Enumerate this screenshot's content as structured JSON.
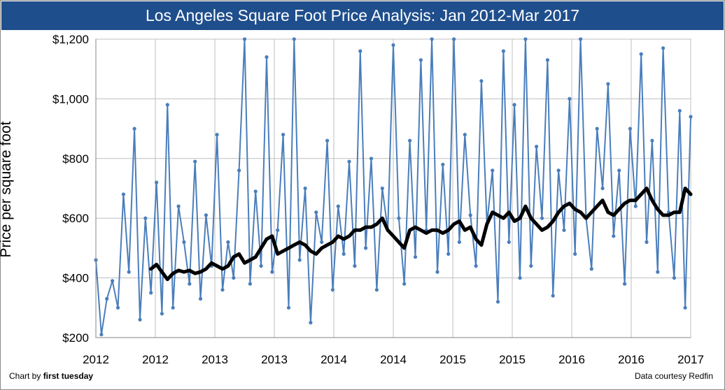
{
  "chart_data": {
    "type": "line",
    "title": "Los Angeles Square Foot Price Analysis: Jan 2012-Mar 2017",
    "ylabel": "Price per square foot",
    "ylim": [
      200,
      1200
    ],
    "yticks": [
      200,
      400,
      600,
      800,
      1000,
      1200
    ],
    "ytick_labels": [
      "$200",
      "$400",
      "$600",
      "$800",
      "$1,000",
      "$1,200"
    ],
    "xlim": [
      2012.0,
      2017.4
    ],
    "xtick_labels": [
      "2012",
      "2012",
      "2013",
      "2013",
      "2014",
      "2014",
      "2015",
      "2015",
      "2016",
      "2016",
      "2017"
    ],
    "grid": true,
    "series": [
      {
        "color": "#4a7ebb",
        "style": "line-with-markers",
        "x": [
          2012.0,
          2012.05,
          2012.1,
          2012.15,
          2012.2,
          2012.25,
          2012.3,
          2012.35,
          2012.4,
          2012.45,
          2012.5,
          2012.55,
          2012.6,
          2012.65,
          2012.7,
          2012.75,
          2012.8,
          2012.85,
          2012.9,
          2012.95,
          2013.0,
          2013.05,
          2013.1,
          2013.15,
          2013.2,
          2013.25,
          2013.3,
          2013.35,
          2013.4,
          2013.45,
          2013.5,
          2013.55,
          2013.6,
          2013.65,
          2013.7,
          2013.75,
          2013.8,
          2013.85,
          2013.9,
          2013.95,
          2014.0,
          2014.05,
          2014.1,
          2014.15,
          2014.2,
          2014.25,
          2014.3,
          2014.35,
          2014.4,
          2014.45,
          2014.5,
          2014.55,
          2014.6,
          2014.65,
          2014.7,
          2014.75,
          2014.8,
          2014.85,
          2014.9,
          2014.95,
          2015.0,
          2015.05,
          2015.1,
          2015.15,
          2015.2,
          2015.25,
          2015.3,
          2015.35,
          2015.4,
          2015.45,
          2015.5,
          2015.55,
          2015.6,
          2015.65,
          2015.7,
          2015.75,
          2015.8,
          2015.85,
          2015.9,
          2015.95,
          2016.0,
          2016.05,
          2016.1,
          2016.15,
          2016.2,
          2016.25,
          2016.3,
          2016.35,
          2016.4,
          2016.45,
          2016.5,
          2016.55,
          2016.6,
          2016.65,
          2016.7,
          2016.75,
          2016.8,
          2016.85,
          2016.9,
          2016.95,
          2017.0,
          2017.05,
          2017.1,
          2017.15,
          2017.2,
          2017.25,
          2017.3,
          2017.35,
          2017.4
        ],
        "values": [
          460,
          210,
          330,
          390,
          300,
          680,
          420,
          900,
          260,
          600,
          350,
          720,
          280,
          980,
          300,
          640,
          520,
          380,
          790,
          330,
          610,
          440,
          880,
          360,
          520,
          400,
          760,
          1200,
          380,
          690,
          440,
          1140,
          420,
          560,
          880,
          300,
          1200,
          460,
          700,
          250,
          620,
          520,
          860,
          360,
          640,
          480,
          790,
          440,
          1160,
          500,
          800,
          360,
          700,
          560,
          1180,
          600,
          380,
          860,
          470,
          1130,
          560,
          1200,
          420,
          780,
          480,
          1200,
          520,
          880,
          610,
          440,
          1060,
          580,
          760,
          320,
          1160,
          520,
          980,
          400,
          1200,
          440,
          840,
          600,
          1130,
          340,
          760,
          560,
          1000,
          480,
          1200,
          600,
          430,
          900,
          700,
          1050,
          540,
          760,
          380,
          900,
          640,
          1150,
          520,
          860,
          420,
          1170,
          620,
          400,
          960,
          300,
          940
        ]
      },
      {
        "color": "#000000",
        "style": "thick-line",
        "x": [
          2012.5,
          2012.55,
          2012.6,
          2012.65,
          2012.7,
          2012.75,
          2012.8,
          2012.85,
          2012.9,
          2012.95,
          2013.0,
          2013.05,
          2013.1,
          2013.15,
          2013.2,
          2013.25,
          2013.3,
          2013.35,
          2013.4,
          2013.45,
          2013.5,
          2013.55,
          2013.6,
          2013.65,
          2013.7,
          2013.75,
          2013.8,
          2013.85,
          2013.9,
          2013.95,
          2014.0,
          2014.05,
          2014.1,
          2014.15,
          2014.2,
          2014.25,
          2014.3,
          2014.35,
          2014.4,
          2014.45,
          2014.5,
          2014.55,
          2014.6,
          2014.65,
          2014.7,
          2014.75,
          2014.8,
          2014.85,
          2014.9,
          2014.95,
          2015.0,
          2015.05,
          2015.1,
          2015.15,
          2015.2,
          2015.25,
          2015.3,
          2015.35,
          2015.4,
          2015.45,
          2015.5,
          2015.55,
          2015.6,
          2015.65,
          2015.7,
          2015.75,
          2015.8,
          2015.85,
          2015.9,
          2015.95,
          2016.0,
          2016.05,
          2016.1,
          2016.15,
          2016.2,
          2016.25,
          2016.3,
          2016.35,
          2016.4,
          2016.45,
          2016.5,
          2016.55,
          2016.6,
          2016.65,
          2016.7,
          2016.75,
          2016.8,
          2016.85,
          2016.9,
          2016.95,
          2017.0,
          2017.05,
          2017.1,
          2017.15,
          2017.2,
          2017.25,
          2017.3,
          2017.35,
          2017.4
        ],
        "values": [
          430,
          445,
          420,
          395,
          415,
          425,
          420,
          425,
          415,
          420,
          430,
          450,
          440,
          430,
          440,
          470,
          480,
          450,
          460,
          470,
          500,
          530,
          540,
          480,
          490,
          500,
          510,
          520,
          510,
          490,
          480,
          500,
          510,
          520,
          540,
          530,
          540,
          560,
          560,
          570,
          570,
          580,
          600,
          560,
          540,
          520,
          500,
          560,
          570,
          560,
          550,
          560,
          560,
          550,
          560,
          580,
          590,
          560,
          570,
          530,
          510,
          580,
          620,
          610,
          600,
          620,
          590,
          600,
          640,
          600,
          580,
          560,
          570,
          590,
          620,
          640,
          650,
          630,
          620,
          600,
          620,
          640,
          660,
          620,
          610,
          630,
          650,
          660,
          660,
          680,
          700,
          660,
          630,
          610,
          610,
          620,
          620,
          700,
          680
        ]
      }
    ]
  },
  "footer": {
    "chart_by_prefix": "Chart by ",
    "chart_by_name": "first tuesday",
    "credit": "Data courtesy Redfin"
  }
}
